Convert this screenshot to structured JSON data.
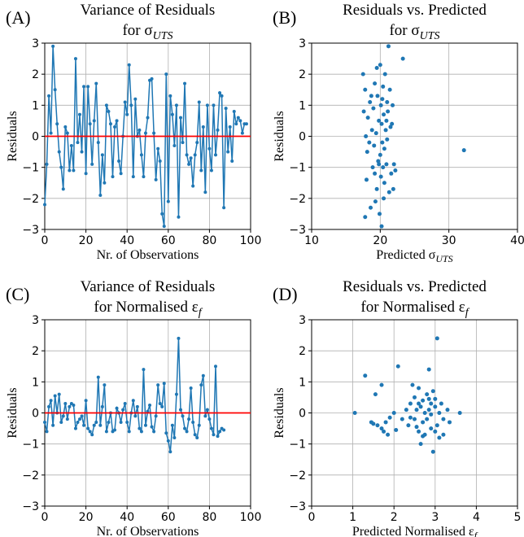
{
  "chart_data": [
    {
      "type": "line",
      "panel_label": "(A)",
      "title": [
        "Variance of Residuals",
        "for σ"
      ],
      "title_subscript": "UTS",
      "xlabel": "Nr. of Observations",
      "ylabel": "Residuals",
      "color": "#1f77b4",
      "grid": true,
      "hline": 0,
      "hline_color": "#ff0000",
      "xlim": [
        0,
        100
      ],
      "xticks": [
        0,
        20,
        40,
        60,
        80,
        100
      ],
      "ylim": [
        -3,
        3
      ],
      "yticks": [
        {
          "value": -3,
          "label": "−3"
        },
        {
          "value": -2,
          "label": "−2"
        },
        {
          "value": -1,
          "label": "−1"
        },
        0,
        1,
        2,
        3
      ],
      "x": [
        0,
        1,
        2,
        3,
        4,
        5,
        6,
        7,
        8,
        9,
        10,
        11,
        12,
        13,
        14,
        15,
        16,
        17,
        18,
        19,
        20,
        21,
        22,
        23,
        24,
        25,
        26,
        27,
        28,
        29,
        30,
        31,
        32,
        33,
        34,
        35,
        36,
        37,
        38,
        39,
        40,
        41,
        42,
        43,
        44,
        45,
        46,
        47,
        48,
        49,
        50,
        51,
        52,
        53,
        54,
        55,
        56,
        57,
        58,
        59,
        60,
        61,
        62,
        63,
        64,
        65,
        66,
        67,
        68,
        69,
        70,
        71,
        72,
        73,
        74,
        75,
        76,
        77,
        78,
        79,
        80,
        81,
        82,
        83,
        84,
        85,
        86,
        87,
        88,
        89,
        90,
        91,
        92,
        93,
        94,
        95,
        96,
        97,
        98
      ],
      "values": [
        -2.2,
        -0.9,
        1.3,
        0.1,
        2.9,
        1.5,
        0.4,
        -0.5,
        -1.0,
        -1.7,
        0.3,
        0.1,
        -1.1,
        -0.3,
        -1.1,
        2.5,
        -0.2,
        0.7,
        -0.5,
        1.6,
        -1.2,
        1.6,
        0.4,
        -0.9,
        0.5,
        1.7,
        -0.2,
        -1.9,
        -0.6,
        -1.5,
        1.0,
        0.8,
        0.4,
        -1.3,
        0.3,
        0.5,
        -0.8,
        -1.2,
        0.0,
        1.1,
        0.7,
        2.3,
        1.0,
        -1.3,
        1.2,
        0.0,
        0.2,
        -0.6,
        -1.3,
        0.1,
        0.6,
        1.8,
        1.85,
        0.1,
        -1.4,
        -0.4,
        -0.8,
        -2.5,
        -2.9,
        2.0,
        -2.1,
        1.3,
        0.7,
        -0.3,
        1.0,
        -2.6,
        0.6,
        -0.2,
        1.7,
        -0.6,
        -0.9,
        -0.7,
        -1.6,
        -0.6,
        -0.2,
        1.1,
        -1.1,
        0.3,
        -1.8,
        1.0,
        -0.4,
        -1.1,
        1.0,
        -0.6,
        0.2,
        1.4,
        1.3,
        -2.3,
        0.9,
        -0.5,
        0.3,
        -0.8,
        0.8,
        0.4,
        0.6,
        0.5,
        0.1,
        0.4,
        0.4
      ]
    },
    {
      "type": "scatter",
      "panel_label": "(B)",
      "title": [
        "Residuals vs. Predicted",
        "for σ"
      ],
      "title_subscript": "UTS",
      "xlabel": "Predicted σ",
      "xlabel_subscript": "UTS",
      "ylabel": "Residuals",
      "color": "#1f77b4",
      "grid": true,
      "xlim": [
        10,
        40
      ],
      "xticks": [
        10,
        20,
        30,
        40
      ],
      "ylim": [
        -3,
        3
      ],
      "yticks": [
        {
          "value": -3,
          "label": "−3"
        },
        {
          "value": -2,
          "label": "−2"
        },
        {
          "value": -1,
          "label": "−1"
        },
        0,
        1,
        2,
        3
      ],
      "x": [
        17.5,
        17.6,
        17.8,
        17.8,
        18.0,
        18.2,
        18.1,
        18.5,
        18.6,
        18.8,
        18.9,
        19.0,
        19.2,
        19.1,
        19.3,
        19.4,
        19.5,
        19.6,
        19.7,
        19.8,
        19.9,
        20.0,
        20.0,
        20.1,
        20.1,
        20.2,
        20.2,
        20.3,
        20.3,
        20.4,
        20.4,
        20.5,
        20.6,
        20.6,
        20.7,
        20.8,
        20.9,
        21.0,
        21.0,
        21.1,
        21.2,
        21.3,
        21.4,
        21.5,
        21.6,
        21.8,
        22.0,
        22.2,
        21.9,
        23.3,
        32.2,
        17.9,
        18.4,
        19.5,
        20.9,
        19.2,
        18.7,
        20.5,
        21.7,
        19.8
      ],
      "values": [
        2.0,
        0.8,
        -2.6,
        1.5,
        -1.4,
        0.6,
        -0.5,
        1.1,
        -2.3,
        0.2,
        -1.0,
        0.9,
        1.7,
        -0.3,
        -2.1,
        0.1,
        -1.7,
        1.3,
        -0.8,
        0.5,
        -2.5,
        2.3,
        -0.6,
        1.0,
        -1.3,
        0.4,
        -2.9,
        1.2,
        -0.2,
        1.6,
        -1.0,
        0.7,
        -0.4,
        -1.5,
        2.0,
        0.2,
        -0.9,
        1.1,
        -0.1,
        0.8,
        2.9,
        -1.8,
        1.5,
        0.3,
        -1.2,
        1.0,
        -0.9,
        -1.1,
        -1.7,
        2.5,
        -0.45,
        0.0,
        -0.2,
        2.2,
        0.5,
        -1.2,
        1.3,
        -2.0,
        0.4,
        -0.9
      ]
    },
    {
      "type": "line",
      "panel_label": "(C)",
      "title": [
        "Variance of Residuals",
        "for Normalised ε"
      ],
      "title_subscript": "f",
      "xlabel": "Nr. of Observations",
      "ylabel": "Residuals",
      "color": "#1f77b4",
      "grid": true,
      "hline": 0,
      "hline_color": "#ff0000",
      "xlim": [
        0,
        100
      ],
      "xticks": [
        0,
        20,
        40,
        60,
        80,
        100
      ],
      "ylim": [
        -3,
        3
      ],
      "yticks": [
        {
          "value": -3,
          "label": "−3"
        },
        {
          "value": -2,
          "label": "−2"
        },
        {
          "value": -1,
          "label": "−1"
        },
        0,
        1,
        2,
        3
      ],
      "x": [
        0,
        1,
        2,
        3,
        4,
        5,
        6,
        7,
        8,
        9,
        10,
        11,
        12,
        13,
        14,
        15,
        16,
        17,
        18,
        19,
        20,
        21,
        22,
        23,
        24,
        25,
        26,
        27,
        28,
        29,
        30,
        31,
        32,
        33,
        34,
        35,
        36,
        37,
        38,
        39,
        40,
        41,
        42,
        43,
        44,
        45,
        46,
        47,
        48,
        49,
        50,
        51,
        52,
        53,
        54,
        55,
        56,
        57,
        58,
        59,
        60,
        61,
        62,
        63,
        64,
        65,
        66,
        67,
        68,
        69,
        70,
        71,
        72,
        73,
        74,
        75,
        76,
        77,
        78,
        79,
        80,
        81,
        82,
        83,
        84,
        85,
        86,
        87
      ],
      "values": [
        -0.3,
        -0.6,
        0.2,
        0.4,
        -0.4,
        0.55,
        0.0,
        0.6,
        -0.3,
        -0.1,
        0.3,
        -0.2,
        0.2,
        0.3,
        0.25,
        -0.5,
        -0.3,
        -0.2,
        -0.1,
        -0.4,
        0.4,
        -0.5,
        -0.6,
        -0.7,
        -0.4,
        -0.3,
        1.15,
        -0.4,
        0.2,
        0.9,
        -0.6,
        -0.3,
        0.0,
        -0.6,
        -0.55,
        0.15,
        0.0,
        -0.3,
        0.1,
        0.3,
        -0.3,
        -0.6,
        0.0,
        0.4,
        -0.1,
        0.2,
        -0.5,
        -0.6,
        1.4,
        -0.4,
        0.05,
        0.25,
        -0.45,
        -0.6,
        -0.1,
        0.9,
        0.3,
        0.2,
        0.95,
        -0.65,
        -0.9,
        -1.25,
        -0.4,
        -0.8,
        0.6,
        2.4,
        0.1,
        -0.1,
        -0.5,
        -0.6,
        -0.2,
        0.8,
        -0.3,
        -0.7,
        -0.8,
        -0.4,
        0.9,
        1.2,
        -0.1,
        0.1,
        -0.2,
        -0.5,
        -0.7,
        1.5,
        -0.75,
        -0.6,
        -0.5,
        -0.55
      ]
    },
    {
      "type": "scatter",
      "panel_label": "(D)",
      "title": [
        "Residuals vs. Predicted",
        "for Normalised ε"
      ],
      "title_subscript": "f",
      "xlabel": "Predicted Normalised ε",
      "xlabel_subscript": "f",
      "ylabel": "Residuals",
      "color": "#1f77b4",
      "grid": true,
      "xlim": [
        0,
        5
      ],
      "xticks": [
        0,
        1,
        2,
        3,
        4,
        5
      ],
      "ylim": [
        -3,
        3
      ],
      "yticks": [
        {
          "value": -3,
          "label": "−3"
        },
        {
          "value": -2,
          "label": "−2"
        },
        {
          "value": -1,
          "label": "−1"
        },
        0,
        1,
        2,
        3
      ],
      "x": [
        1.05,
        1.3,
        1.45,
        1.5,
        1.55,
        1.6,
        1.7,
        1.7,
        1.75,
        1.8,
        1.85,
        2.0,
        2.05,
        2.1,
        2.3,
        2.35,
        2.4,
        2.45,
        2.5,
        2.5,
        2.55,
        2.6,
        2.6,
        2.65,
        2.65,
        2.7,
        2.7,
        2.75,
        2.75,
        2.8,
        2.8,
        2.85,
        2.85,
        2.9,
        2.9,
        2.95,
        2.95,
        3.0,
        3.0,
        3.05,
        3.05,
        3.1,
        3.1,
        3.15,
        3.2,
        3.2,
        3.3,
        3.35,
        3.6,
        2.55,
        2.7,
        2.85,
        3.0,
        2.4,
        2.2,
        1.9,
        2.9,
        2.6
      ],
      "values": [
        0.0,
        1.2,
        -0.3,
        -0.35,
        0.6,
        -0.4,
        -0.5,
        0.9,
        -0.6,
        -0.3,
        -0.7,
        0.0,
        -0.55,
        1.5,
        0.1,
        -0.4,
        0.3,
        0.9,
        -0.2,
        0.5,
        0.1,
        -0.6,
        0.8,
        -1.0,
        0.2,
        -0.3,
        0.4,
        0.0,
        -0.7,
        0.6,
        -0.2,
        1.4,
        0.1,
        -0.5,
        0.3,
        -1.25,
        0.7,
        -0.6,
        0.2,
        2.4,
        -0.4,
        0.0,
        -0.8,
        0.3,
        -0.2,
        -0.7,
        0.1,
        -0.3,
        0.0,
        -0.45,
        -0.75,
        0.45,
        0.45,
        -0.15,
        -0.2,
        -0.15,
        -0.05,
        0.3
      ]
    }
  ]
}
